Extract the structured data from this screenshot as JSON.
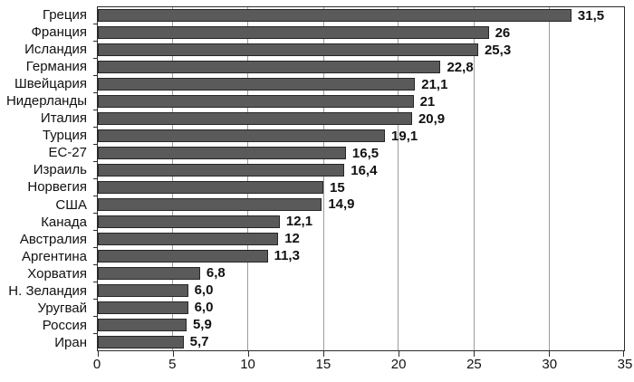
{
  "chart_data": {
    "type": "bar",
    "orientation": "horizontal",
    "title": "",
    "xlabel": "",
    "ylabel": "",
    "categories": [
      "Греция",
      "Франция",
      "Исландия",
      "Германия",
      "Швейцария",
      "Нидерланды",
      "Италия",
      "Турция",
      "ЕС-27",
      "Израиль",
      "Норвегия",
      "США",
      "Канада",
      "Австралия",
      "Аргентина",
      "Хорватия",
      "Н. Зеландия",
      "Уругвай",
      "Россия",
      "Иран"
    ],
    "values": [
      31.5,
      26,
      25.3,
      22.8,
      21.1,
      21,
      20.9,
      19.1,
      16.5,
      16.4,
      15,
      14.9,
      12.1,
      12,
      11.3,
      6.8,
      6.0,
      6.0,
      5.9,
      5.7
    ],
    "value_labels": [
      "31,5",
      "26",
      "25,3",
      "22,8",
      "21,1",
      "21",
      "20,9",
      "19,1",
      "16,5",
      "16,4",
      "15",
      "14,9",
      "12,1",
      "12",
      "11,3",
      "6,8",
      "6,0",
      "6,0",
      "5,9",
      "5,7"
    ],
    "xlim": [
      0,
      35
    ],
    "xticks": [
      0,
      5,
      10,
      15,
      20,
      25,
      30,
      35
    ],
    "xtick_labels": [
      "0",
      "5",
      "10",
      "15",
      "20",
      "25",
      "30",
      "35"
    ],
    "grid": "vertical",
    "legend": "none",
    "colors": {
      "bar_fill": "#5a5a5a",
      "bar_border": "#262626",
      "gridline": "#9c9c9c",
      "axis_border": "#2b2b2b",
      "text": "#111111",
      "background": "#ffffff"
    }
  }
}
